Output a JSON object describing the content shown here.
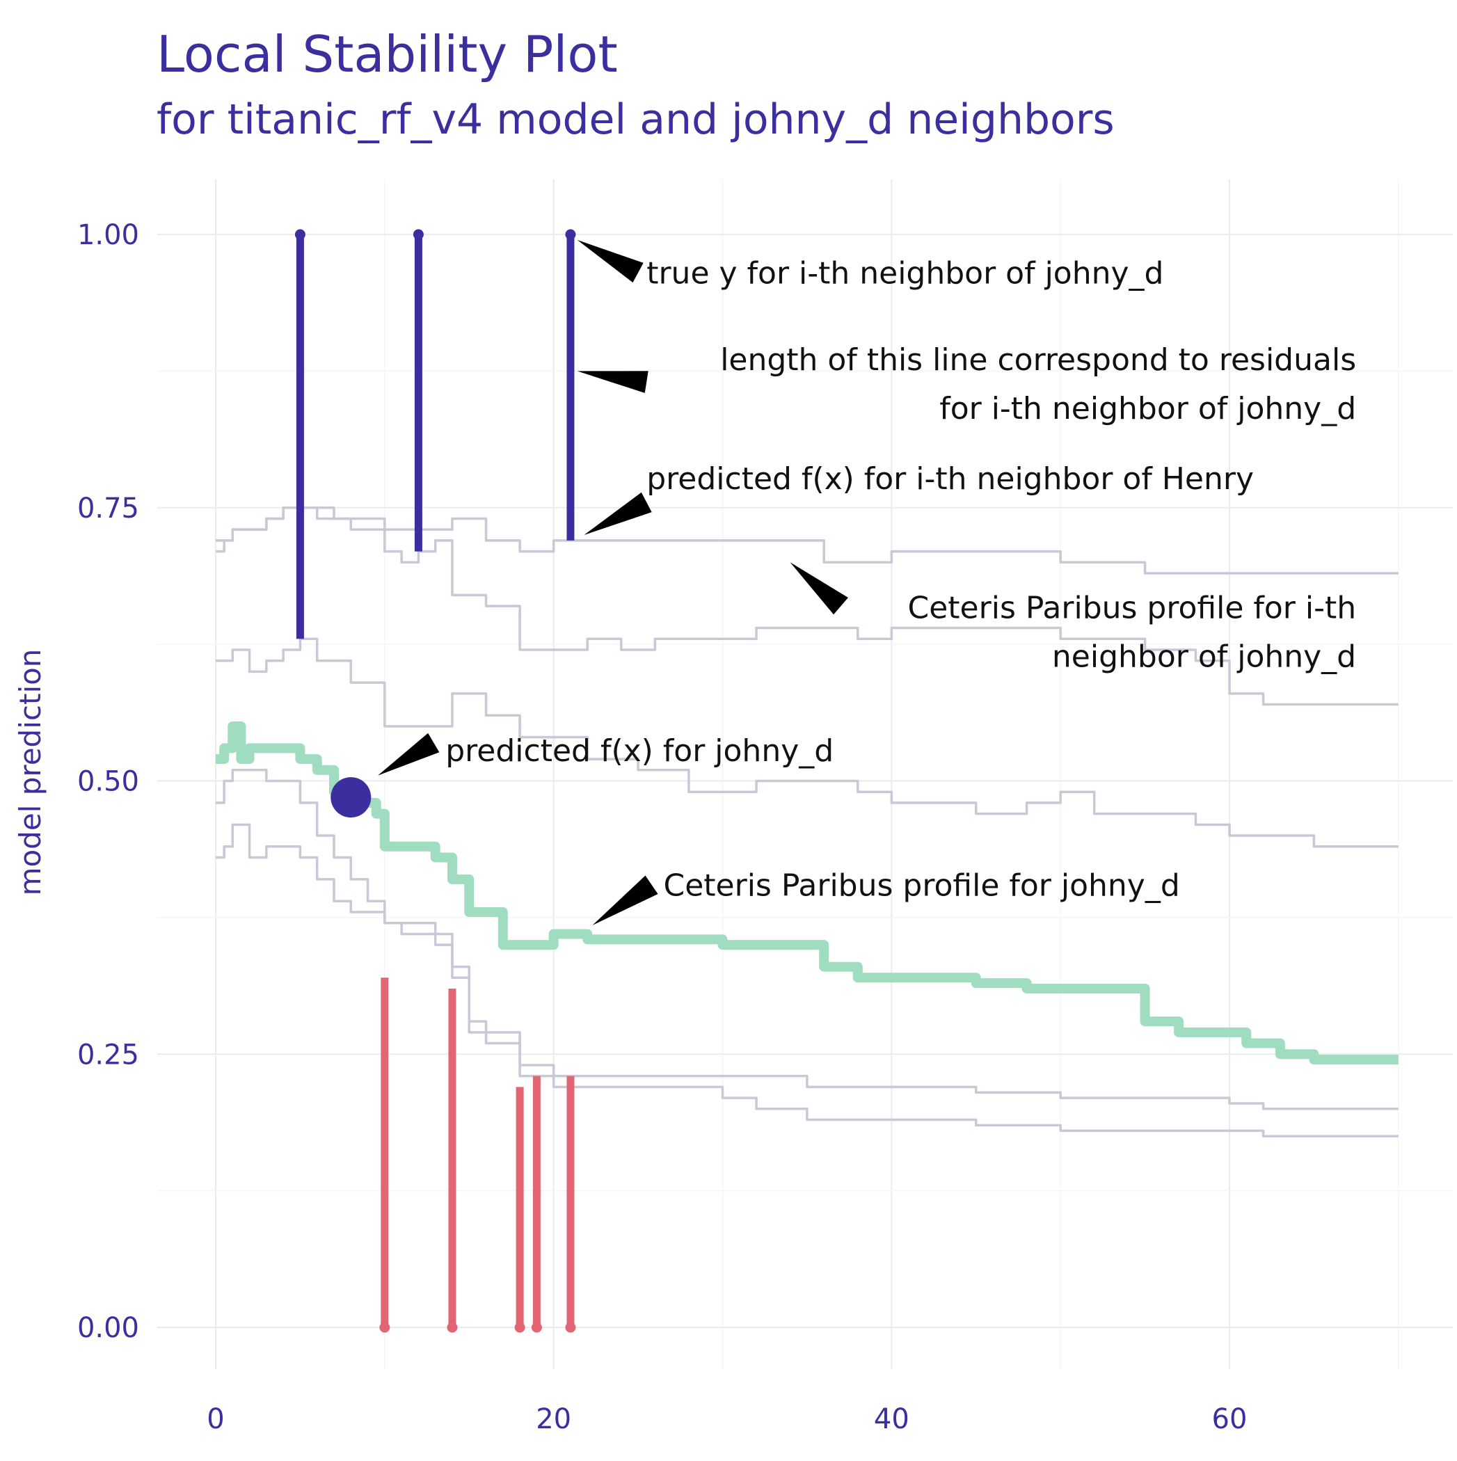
{
  "chart_data": {
    "type": "line",
    "title": "Local Stability Plot",
    "subtitle": "for titanic_rf_v4 model and johny_d neighbors",
    "xlabel": "",
    "ylabel": "model prediction",
    "xlim": [
      0,
      70
    ],
    "ylim": [
      -0.05,
      1.05
    ],
    "x_ticks": [
      0,
      20,
      40,
      60
    ],
    "y_ticks": [
      0.0,
      0.25,
      0.5,
      0.75,
      1.0
    ],
    "x_tick_labels": [
      "0",
      "20",
      "40",
      "60"
    ],
    "y_tick_labels": [
      "0.00",
      "0.25",
      "0.50",
      "0.75",
      "1.00"
    ],
    "grid": true,
    "colors": {
      "neighbor_profile": "#c8c8d6",
      "main_profile": "#9fdcc0",
      "positive_residual": "#3b2fa0",
      "negative_residual": "#e06674",
      "observation": "#3b2fa0",
      "text": "#3b2fa0"
    },
    "main_profile": {
      "x": [
        0,
        0.5,
        1,
        1.5,
        2,
        3,
        4,
        5,
        6,
        7,
        8,
        9,
        9.5,
        10,
        12,
        13,
        14,
        15,
        16,
        17,
        18,
        20,
        21,
        22,
        25,
        28,
        30,
        32,
        34,
        36,
        38,
        40,
        42,
        45,
        48,
        50,
        52,
        54,
        55,
        57,
        59,
        61,
        62,
        63,
        64,
        65,
        66,
        68,
        70
      ],
      "y": [
        0.52,
        0.53,
        0.55,
        0.52,
        0.53,
        0.53,
        0.53,
        0.52,
        0.51,
        0.49,
        0.48,
        0.48,
        0.47,
        0.44,
        0.44,
        0.43,
        0.41,
        0.38,
        0.38,
        0.35,
        0.35,
        0.36,
        0.36,
        0.355,
        0.355,
        0.355,
        0.35,
        0.35,
        0.35,
        0.33,
        0.32,
        0.32,
        0.32,
        0.315,
        0.31,
        0.31,
        0.31,
        0.31,
        0.28,
        0.27,
        0.27,
        0.26,
        0.26,
        0.25,
        0.25,
        0.245,
        0.245,
        0.245,
        0.245
      ]
    },
    "neighbor_profiles": [
      {
        "x": [
          0,
          0.5,
          1,
          2,
          3,
          4,
          5,
          6,
          7,
          9,
          10,
          12,
          14,
          16,
          18,
          20,
          22,
          25,
          28,
          30,
          32,
          35,
          36,
          40,
          45,
          50,
          55,
          60,
          62,
          65,
          70
        ],
        "y": [
          0.71,
          0.72,
          0.73,
          0.73,
          0.74,
          0.75,
          0.75,
          0.75,
          0.74,
          0.74,
          0.73,
          0.73,
          0.74,
          0.72,
          0.71,
          0.72,
          0.72,
          0.72,
          0.72,
          0.72,
          0.72,
          0.72,
          0.7,
          0.71,
          0.71,
          0.7,
          0.69,
          0.69,
          0.69,
          0.69,
          0.69
        ]
      },
      {
        "x": [
          0,
          1,
          2,
          3,
          4,
          5,
          6,
          8,
          9,
          10,
          11,
          12,
          13,
          14,
          16,
          17,
          18,
          20,
          22,
          24,
          26,
          28,
          30,
          32,
          34,
          36,
          38,
          40,
          45,
          50,
          55,
          58,
          60,
          62,
          65,
          70
        ],
        "y": [
          0.72,
          0.73,
          0.73,
          0.74,
          0.75,
          0.75,
          0.74,
          0.73,
          0.73,
          0.71,
          0.7,
          0.71,
          0.72,
          0.67,
          0.66,
          0.66,
          0.62,
          0.62,
          0.63,
          0.62,
          0.63,
          0.63,
          0.63,
          0.64,
          0.64,
          0.64,
          0.63,
          0.64,
          0.64,
          0.63,
          0.62,
          0.61,
          0.58,
          0.57,
          0.57,
          0.57
        ]
      },
      {
        "x": [
          0,
          1,
          2,
          3,
          4,
          5,
          6,
          8,
          10,
          12,
          14,
          16,
          18,
          20,
          22,
          25,
          28,
          30,
          32,
          35,
          38,
          40,
          42,
          45,
          48,
          50,
          52,
          55,
          58,
          60,
          62,
          65,
          70
        ],
        "y": [
          0.61,
          0.62,
          0.6,
          0.61,
          0.62,
          0.63,
          0.61,
          0.59,
          0.55,
          0.55,
          0.58,
          0.56,
          0.54,
          0.54,
          0.52,
          0.51,
          0.49,
          0.49,
          0.5,
          0.5,
          0.49,
          0.48,
          0.48,
          0.47,
          0.48,
          0.49,
          0.47,
          0.47,
          0.46,
          0.45,
          0.45,
          0.44,
          0.44
        ]
      },
      {
        "x": [
          0,
          0.5,
          1,
          2,
          3,
          4,
          5,
          6,
          7,
          8,
          9,
          10,
          11,
          12,
          13,
          14,
          15,
          16,
          18,
          20,
          22,
          25,
          28,
          30,
          32,
          35,
          38,
          40,
          45,
          50,
          55,
          60,
          62,
          65,
          70
        ],
        "y": [
          0.48,
          0.5,
          0.51,
          0.51,
          0.5,
          0.5,
          0.48,
          0.45,
          0.43,
          0.41,
          0.39,
          0.37,
          0.37,
          0.37,
          0.36,
          0.33,
          0.28,
          0.27,
          0.24,
          0.23,
          0.23,
          0.23,
          0.23,
          0.23,
          0.23,
          0.22,
          0.22,
          0.22,
          0.215,
          0.21,
          0.21,
          0.205,
          0.2,
          0.2,
          0.2
        ]
      },
      {
        "x": [
          0,
          0.5,
          1,
          2,
          3,
          4,
          5,
          6,
          7,
          8,
          9,
          10,
          11,
          12,
          13,
          14,
          15,
          16,
          18,
          20,
          22,
          25,
          28,
          30,
          32,
          35,
          38,
          40,
          45,
          50,
          55,
          60,
          62,
          65,
          70
        ],
        "y": [
          0.43,
          0.44,
          0.46,
          0.43,
          0.44,
          0.44,
          0.43,
          0.41,
          0.39,
          0.38,
          0.38,
          0.37,
          0.36,
          0.36,
          0.35,
          0.32,
          0.27,
          0.26,
          0.23,
          0.22,
          0.22,
          0.22,
          0.22,
          0.21,
          0.2,
          0.19,
          0.19,
          0.19,
          0.185,
          0.18,
          0.18,
          0.18,
          0.175,
          0.175,
          0.175
        ]
      }
    ],
    "residuals": [
      {
        "x": 5,
        "true_y": 1.0,
        "predicted": 0.63,
        "sign": "positive"
      },
      {
        "x": 12,
        "true_y": 1.0,
        "predicted": 0.71,
        "sign": "positive"
      },
      {
        "x": 21,
        "true_y": 1.0,
        "predicted": 0.72,
        "sign": "positive"
      },
      {
        "x": 10,
        "true_y": 0.0,
        "predicted": 0.32,
        "sign": "negative"
      },
      {
        "x": 14,
        "true_y": 0.0,
        "predicted": 0.31,
        "sign": "negative"
      },
      {
        "x": 18,
        "true_y": 0.0,
        "predicted": 0.22,
        "sign": "negative"
      },
      {
        "x": 19,
        "true_y": 0.0,
        "predicted": 0.23,
        "sign": "negative"
      },
      {
        "x": 21,
        "true_y": 0.0,
        "predicted": 0.23,
        "sign": "negative"
      }
    ],
    "observation": {
      "x": 8,
      "y": 0.485
    },
    "annotations": [
      {
        "id": "true-y",
        "lines": [
          "true y for i-th neighbor of johny_d"
        ],
        "anchor": "start",
        "text_x": 25.5,
        "text_y": 0.955,
        "arrow_to": [
          21.4,
          0.995
        ],
        "arrow_from": [
          25.0,
          0.965
        ]
      },
      {
        "id": "residual-length",
        "lines": [
          "length of this line correspond to residuals",
          "for i-th neighbor of johny_d"
        ],
        "anchor": "end",
        "text_x": 67.5,
        "text_y": 0.876,
        "arrow_to": [
          21.4,
          0.875
        ],
        "arrow_from": [
          25.5,
          0.865
        ]
      },
      {
        "id": "predicted-neighbor",
        "lines": [
          "predicted f(x) for i-th neighbor of Henry"
        ],
        "anchor": "start",
        "text_x": 25.5,
        "text_y": 0.767,
        "arrow_to": [
          21.8,
          0.725
        ],
        "arrow_from": [
          25.5,
          0.755
        ]
      },
      {
        "id": "cp-neighbor",
        "lines": [
          "Ceteris Paribus profile for  i-th",
          "neighbor of johny_d"
        ],
        "anchor": "end",
        "text_x": 67.5,
        "text_y": 0.649,
        "arrow_to": [
          34.0,
          0.7
        ],
        "arrow_from": [
          37.0,
          0.66
        ]
      },
      {
        "id": "predicted-johny",
        "lines": [
          "predicted f(x) for johny_d"
        ],
        "anchor": "start",
        "text_x": 13.6,
        "text_y": 0.518,
        "arrow_to": [
          9.6,
          0.505
        ],
        "arrow_from": [
          12.9,
          0.535
        ]
      },
      {
        "id": "cp-johny",
        "lines": [
          "Ceteris Paribus profile for johny_d"
        ],
        "anchor": "start",
        "text_x": 26.5,
        "text_y": 0.395,
        "arrow_to": [
          22.3,
          0.368
        ],
        "arrow_from": [
          25.8,
          0.405
        ]
      }
    ]
  }
}
